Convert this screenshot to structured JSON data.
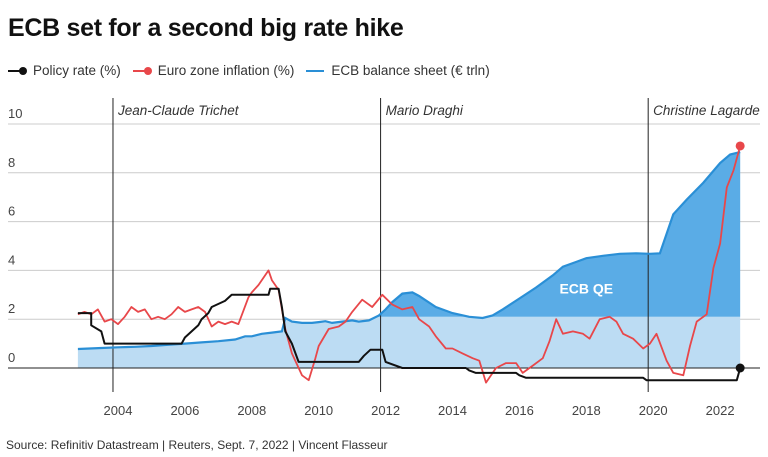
{
  "header": {
    "title": "ECB set for a second big rate hike"
  },
  "legend": [
    {
      "key": "policy",
      "label": "Policy rate (%)",
      "color": "#111111",
      "marker": "dot"
    },
    {
      "key": "inflation",
      "label": "Euro zone inflation (%)",
      "color": "#e8474a",
      "marker": "dot"
    },
    {
      "key": "balance",
      "label": "ECB balance sheet (€ trln)",
      "color": "#2a8fd6",
      "marker": "line"
    }
  ],
  "footer": {
    "source": "Source: Refinitiv Datastream | Reuters, Sept. 7, 2022 | Vincent Flasseur"
  },
  "colors": {
    "policy": "#111111",
    "inflation": "#e8474a",
    "balance_line": "#2a8fd6",
    "balance_fill_light": "#bcdcf3",
    "balance_fill_dark": "#5aace6",
    "grid": "#cccccc",
    "era_line": "#222222"
  },
  "chart_data": {
    "type": "line",
    "title": "ECB set for a second big rate hike",
    "xlabel": "",
    "ylabel": "",
    "xlim": [
      2002.2,
      2023.2
    ],
    "ylim": [
      0,
      10
    ],
    "yticks": [
      0,
      2,
      4,
      6,
      8,
      10
    ],
    "ytick_labels": [
      "0",
      "2",
      "4",
      "6",
      "8",
      "10"
    ],
    "xticks": [
      2004,
      2006,
      2008,
      2010,
      2012,
      2014,
      2016,
      2018,
      2020,
      2022
    ],
    "xtick_labels": [
      "2004",
      "2006",
      "2008",
      "2010",
      "2012",
      "2014",
      "2016",
      "2018",
      "2020",
      "2022"
    ],
    "grid": true,
    "legend_position": "top-left",
    "annotations": [
      {
        "type": "vline",
        "x": 2003.85,
        "label": "Jean-Claude Trichet"
      },
      {
        "type": "vline",
        "x": 2011.85,
        "label": "Mario Draghi"
      },
      {
        "type": "vline",
        "x": 2019.85,
        "label": "Christine Lagarde"
      },
      {
        "type": "area_label",
        "x": 2018.0,
        "y": 3.05,
        "label": "ECB QE"
      }
    ],
    "qe_threshold": 2.1,
    "series": [
      {
        "name": "ECB balance sheet (€ trln)",
        "key": "balance",
        "type": "area",
        "points": [
          [
            2002.8,
            0.78
          ],
          [
            2003.5,
            0.82
          ],
          [
            2004.0,
            0.85
          ],
          [
            2004.5,
            0.87
          ],
          [
            2005.0,
            0.9
          ],
          [
            2005.5,
            0.95
          ],
          [
            2006.0,
            1.0
          ],
          [
            2006.5,
            1.05
          ],
          [
            2007.0,
            1.1
          ],
          [
            2007.5,
            1.17
          ],
          [
            2007.8,
            1.3
          ],
          [
            2008.0,
            1.3
          ],
          [
            2008.3,
            1.4
          ],
          [
            2008.6,
            1.45
          ],
          [
            2008.9,
            1.5
          ],
          [
            2009.0,
            2.05
          ],
          [
            2009.2,
            1.9
          ],
          [
            2009.5,
            1.85
          ],
          [
            2009.8,
            1.85
          ],
          [
            2010.0,
            1.88
          ],
          [
            2010.2,
            1.92
          ],
          [
            2010.4,
            1.85
          ],
          [
            2010.7,
            1.9
          ],
          [
            2011.0,
            1.95
          ],
          [
            2011.2,
            1.9
          ],
          [
            2011.5,
            1.95
          ],
          [
            2011.8,
            2.15
          ],
          [
            2012.0,
            2.4
          ],
          [
            2012.2,
            2.7
          ],
          [
            2012.5,
            3.05
          ],
          [
            2012.8,
            3.1
          ],
          [
            2013.0,
            2.95
          ],
          [
            2013.5,
            2.5
          ],
          [
            2014.0,
            2.25
          ],
          [
            2014.5,
            2.1
          ],
          [
            2014.9,
            2.05
          ],
          [
            2015.2,
            2.15
          ],
          [
            2015.5,
            2.4
          ],
          [
            2016.0,
            2.85
          ],
          [
            2016.5,
            3.3
          ],
          [
            2017.0,
            3.8
          ],
          [
            2017.3,
            4.15
          ],
          [
            2017.7,
            4.35
          ],
          [
            2018.0,
            4.5
          ],
          [
            2018.5,
            4.6
          ],
          [
            2019.0,
            4.68
          ],
          [
            2019.5,
            4.7
          ],
          [
            2019.9,
            4.68
          ],
          [
            2020.2,
            4.7
          ],
          [
            2020.4,
            5.5
          ],
          [
            2020.6,
            6.3
          ],
          [
            2021.0,
            6.9
          ],
          [
            2021.5,
            7.6
          ],
          [
            2022.0,
            8.4
          ],
          [
            2022.3,
            8.75
          ],
          [
            2022.6,
            8.85
          ]
        ]
      },
      {
        "name": "Euro zone inflation (%)",
        "key": "inflation",
        "type": "line",
        "points": [
          [
            2002.8,
            2.2
          ],
          [
            2003.0,
            2.3
          ],
          [
            2003.2,
            2.2
          ],
          [
            2003.4,
            2.4
          ],
          [
            2003.6,
            1.9
          ],
          [
            2003.8,
            2.0
          ],
          [
            2004.0,
            1.8
          ],
          [
            2004.2,
            2.1
          ],
          [
            2004.4,
            2.5
          ],
          [
            2004.6,
            2.3
          ],
          [
            2004.8,
            2.4
          ],
          [
            2005.0,
            2.0
          ],
          [
            2005.2,
            2.1
          ],
          [
            2005.4,
            2.0
          ],
          [
            2005.6,
            2.2
          ],
          [
            2005.8,
            2.5
          ],
          [
            2006.0,
            2.3
          ],
          [
            2006.2,
            2.4
          ],
          [
            2006.4,
            2.5
          ],
          [
            2006.6,
            2.3
          ],
          [
            2006.8,
            1.7
          ],
          [
            2007.0,
            1.9
          ],
          [
            2007.2,
            1.8
          ],
          [
            2007.4,
            1.9
          ],
          [
            2007.6,
            1.8
          ],
          [
            2007.9,
            2.9
          ],
          [
            2008.0,
            3.1
          ],
          [
            2008.2,
            3.4
          ],
          [
            2008.5,
            4.0
          ],
          [
            2008.6,
            3.6
          ],
          [
            2008.8,
            3.2
          ],
          [
            2009.0,
            1.6
          ],
          [
            2009.2,
            0.6
          ],
          [
            2009.5,
            -0.3
          ],
          [
            2009.7,
            -0.5
          ],
          [
            2009.9,
            0.4
          ],
          [
            2010.0,
            0.9
          ],
          [
            2010.3,
            1.6
          ],
          [
            2010.6,
            1.7
          ],
          [
            2010.8,
            1.9
          ],
          [
            2011.0,
            2.3
          ],
          [
            2011.3,
            2.8
          ],
          [
            2011.6,
            2.5
          ],
          [
            2011.9,
            3.0
          ],
          [
            2012.2,
            2.6
          ],
          [
            2012.5,
            2.4
          ],
          [
            2012.8,
            2.5
          ],
          [
            2013.0,
            2.0
          ],
          [
            2013.3,
            1.7
          ],
          [
            2013.5,
            1.3
          ],
          [
            2013.8,
            0.8
          ],
          [
            2014.0,
            0.8
          ],
          [
            2014.3,
            0.6
          ],
          [
            2014.6,
            0.4
          ],
          [
            2014.8,
            0.3
          ],
          [
            2015.0,
            -0.6
          ],
          [
            2015.3,
            0.0
          ],
          [
            2015.6,
            0.2
          ],
          [
            2015.9,
            0.2
          ],
          [
            2016.1,
            -0.2
          ],
          [
            2016.4,
            0.1
          ],
          [
            2016.7,
            0.4
          ],
          [
            2016.9,
            1.1
          ],
          [
            2017.1,
            2.0
          ],
          [
            2017.3,
            1.4
          ],
          [
            2017.6,
            1.5
          ],
          [
            2017.9,
            1.4
          ],
          [
            2018.1,
            1.2
          ],
          [
            2018.4,
            2.0
          ],
          [
            2018.7,
            2.1
          ],
          [
            2018.9,
            1.9
          ],
          [
            2019.1,
            1.4
          ],
          [
            2019.4,
            1.2
          ],
          [
            2019.7,
            0.8
          ],
          [
            2019.9,
            1.0
          ],
          [
            2020.1,
            1.4
          ],
          [
            2020.4,
            0.3
          ],
          [
            2020.6,
            -0.2
          ],
          [
            2020.9,
            -0.3
          ],
          [
            2021.1,
            0.9
          ],
          [
            2021.3,
            1.9
          ],
          [
            2021.6,
            2.2
          ],
          [
            2021.8,
            4.1
          ],
          [
            2022.0,
            5.1
          ],
          [
            2022.2,
            7.4
          ],
          [
            2022.4,
            8.1
          ],
          [
            2022.6,
            9.1
          ]
        ]
      },
      {
        "name": "Policy rate (%)",
        "key": "policy",
        "type": "step",
        "points": [
          [
            2002.8,
            2.25
          ],
          [
            2003.2,
            2.25
          ],
          [
            2003.2,
            1.75
          ],
          [
            2003.5,
            1.5
          ],
          [
            2003.6,
            1.0
          ],
          [
            2005.9,
            1.0
          ],
          [
            2006.0,
            1.25
          ],
          [
            2006.2,
            1.5
          ],
          [
            2006.4,
            1.75
          ],
          [
            2006.5,
            2.0
          ],
          [
            2006.7,
            2.25
          ],
          [
            2006.8,
            2.5
          ],
          [
            2007.2,
            2.75
          ],
          [
            2007.4,
            3.0
          ],
          [
            2008.5,
            3.0
          ],
          [
            2008.55,
            3.25
          ],
          [
            2008.8,
            3.25
          ],
          [
            2008.9,
            2.5
          ],
          [
            2009.0,
            1.5
          ],
          [
            2009.2,
            1.0
          ],
          [
            2009.4,
            0.25
          ],
          [
            2011.2,
            0.25
          ],
          [
            2011.35,
            0.5
          ],
          [
            2011.55,
            0.75
          ],
          [
            2011.9,
            0.75
          ],
          [
            2012.0,
            0.25
          ],
          [
            2012.5,
            0.0
          ],
          [
            2014.4,
            0.0
          ],
          [
            2014.5,
            -0.1
          ],
          [
            2014.7,
            -0.2
          ],
          [
            2015.9,
            -0.2
          ],
          [
            2016.0,
            -0.3
          ],
          [
            2016.2,
            -0.4
          ],
          [
            2019.7,
            -0.4
          ],
          [
            2019.8,
            -0.5
          ],
          [
            2022.5,
            -0.5
          ],
          [
            2022.6,
            0.0
          ]
        ]
      }
    ]
  }
}
